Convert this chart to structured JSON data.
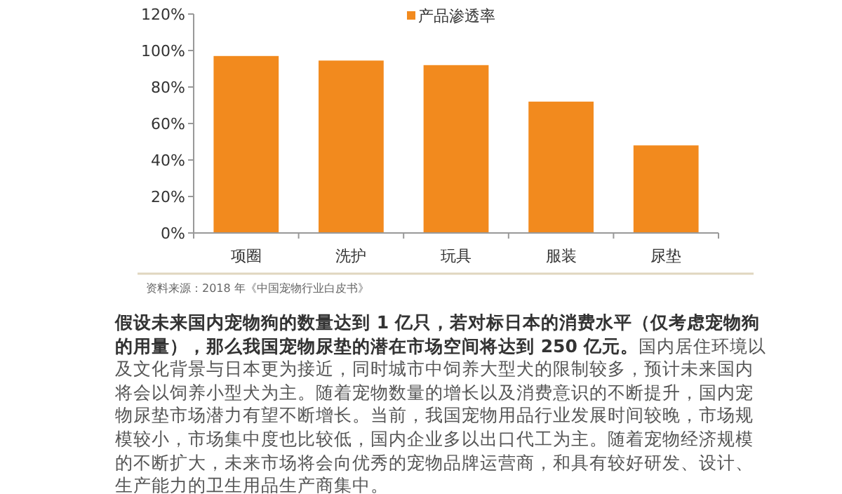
{
  "chart_data": {
    "type": "bar",
    "categories": [
      "项圈",
      "洗护",
      "玩具",
      "服装",
      "尿垫"
    ],
    "series": [
      {
        "name": "产品渗透率",
        "color": "#f28a1e",
        "values": [
          97,
          94.5,
          92,
          72,
          48
        ]
      }
    ],
    "ylim": [
      0,
      120
    ],
    "yticks": [
      {
        "value": 0,
        "label": "0%"
      },
      {
        "value": 20,
        "label": "20%"
      },
      {
        "value": 40,
        "label": "40%"
      },
      {
        "value": 60,
        "label": "60%"
      },
      {
        "value": 80,
        "label": "80%"
      },
      {
        "value": 100,
        "label": "100%"
      },
      {
        "value": 120,
        "label": "120%"
      }
    ],
    "grid": false,
    "legend": "top",
    "annotations": [
      "资料来源：2018 年《中国宠物行业白皮书》",
      "假设未来国内宠物狗的数量达到 1 亿只，若对标日本的消费水平（仅考虑宠物狗的用量），那么我国宠物尿垫的潜在市场空间将达到 250 亿元。",
      "国内居住环境以及文化背景与日本更为接近，同时城市中饲养大型犬的限制较多，预计未来国内将会以饲养小型犬为主。随着宠物数量的增长以及消费意识的不断提升，国内宠物尿垫市场潜力有望不断增长。当前，我国宠物用品行业发展时间较晚，市场规模较小，市场集中度也比较低，国内企业多以出口代工为主。随着宠物经济规模的不断扩大，未来市场将会向优秀的宠物品牌运营商，和具有较好研发、设计、生产能力的卫生用品生产商集中。"
    ]
  }
}
